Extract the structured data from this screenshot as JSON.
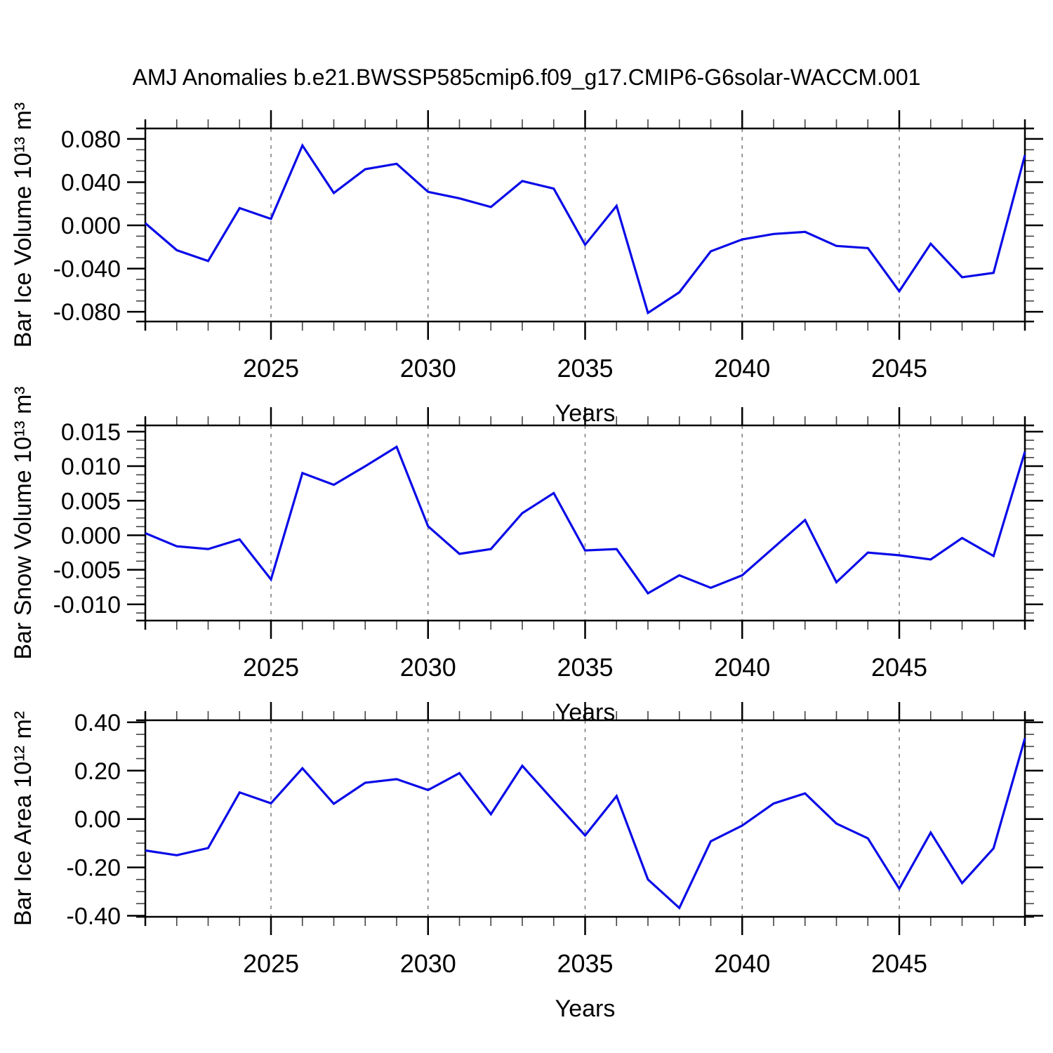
{
  "title": "AMJ Anomalies b.e21.BWSSP585cmip6.f09_g17.CMIP6-G6solar-WACCM.001",
  "style": {
    "line_color": "#0a0ae8",
    "grid_color": "#7a7a7a",
    "axis_color": "#000000",
    "minor_tick_color": "#444444",
    "background": "#ffffff"
  },
  "chart_data": [
    {
      "type": "line",
      "name": "bar-ice-volume",
      "ylabel": "Bar Ice Volume 10¹³ m³",
      "xlabel": "Years",
      "x": [
        2021,
        2022,
        2023,
        2024,
        2025,
        2026,
        2027,
        2028,
        2029,
        2030,
        2031,
        2032,
        2033,
        2034,
        2035,
        2036,
        2037,
        2038,
        2039,
        2040,
        2041,
        2042,
        2043,
        2044,
        2045,
        2046,
        2047,
        2048,
        2049
      ],
      "values": [
        0.002,
        -0.023,
        -0.033,
        0.016,
        0.006,
        0.074,
        0.03,
        0.052,
        0.057,
        0.031,
        0.025,
        0.017,
        0.041,
        0.034,
        -0.018,
        0.018,
        -0.081,
        -0.062,
        -0.024,
        -0.013,
        -0.008,
        -0.006,
        -0.019,
        -0.021,
        -0.061,
        -0.017,
        -0.048,
        -0.044,
        0.065
      ],
      "xlim": [
        2021,
        2049
      ],
      "ylim": [
        -0.089,
        0.0897
      ],
      "xticks_major": [
        2025,
        2030,
        2035,
        2040,
        2045
      ],
      "xtick_minor_step": 1,
      "xtick_labels": [
        "2025",
        "2030",
        "2035",
        "2040",
        "2045"
      ],
      "yticks": [
        -0.08,
        -0.04,
        0.0,
        0.04,
        0.08
      ],
      "ytick_labels": [
        "-0.080",
        "-0.040",
        "0.000",
        "0.040",
        "0.080"
      ],
      "ytick_minor_step": 0.01,
      "grid": "vertical dashed at major x ticks",
      "legend": "none"
    },
    {
      "type": "line",
      "name": "bar-snow-volume",
      "ylabel": "Bar Snow Volume 10¹³ m³",
      "xlabel": "Years",
      "x": [
        2021,
        2022,
        2023,
        2024,
        2025,
        2026,
        2027,
        2028,
        2029,
        2030,
        2031,
        2032,
        2033,
        2034,
        2035,
        2036,
        2037,
        2038,
        2039,
        2040,
        2041,
        2042,
        2043,
        2044,
        2045,
        2046,
        2047,
        2048,
        2049
      ],
      "values": [
        0.0003,
        -0.0016,
        -0.002,
        -0.0006,
        -0.0064,
        0.009,
        0.0073,
        0.01,
        0.0128,
        0.0013,
        -0.0027,
        -0.002,
        0.0032,
        0.0061,
        -0.0022,
        -0.002,
        -0.0084,
        -0.0058,
        -0.0076,
        -0.0058,
        -0.0018,
        0.0022,
        -0.0068,
        -0.0025,
        -0.0029,
        -0.0035,
        -0.0004,
        -0.003,
        0.0121
      ],
      "xlim": [
        2021,
        2049
      ],
      "ylim": [
        -0.01235,
        0.0159
      ],
      "xticks_major": [
        2025,
        2030,
        2035,
        2040,
        2045
      ],
      "xtick_minor_step": 1,
      "xtick_labels": [
        "2025",
        "2030",
        "2035",
        "2040",
        "2045"
      ],
      "yticks": [
        -0.01,
        -0.005,
        0.0,
        0.005,
        0.01,
        0.015
      ],
      "ytick_labels": [
        "-0.010",
        "-0.005",
        "0.000",
        "0.005",
        "0.010",
        "0.015"
      ],
      "ytick_minor_step": 0.00125,
      "grid": "vertical dashed at major x ticks",
      "legend": "none"
    },
    {
      "type": "line",
      "name": "bar-ice-area",
      "ylabel": "Bar Ice Area 10¹² m²",
      "xlabel": "Years",
      "x": [
        2021,
        2022,
        2023,
        2024,
        2025,
        2026,
        2027,
        2028,
        2029,
        2030,
        2031,
        2032,
        2033,
        2034,
        2035,
        2036,
        2037,
        2038,
        2039,
        2040,
        2041,
        2042,
        2043,
        2044,
        2045,
        2046,
        2047,
        2048,
        2049
      ],
      "values": [
        -0.13,
        -0.15,
        -0.12,
        0.11,
        0.065,
        0.21,
        0.063,
        0.15,
        0.165,
        0.12,
        0.19,
        0.02,
        0.22,
        0.075,
        -0.068,
        0.095,
        -0.25,
        -0.368,
        -0.092,
        -0.027,
        0.064,
        0.106,
        -0.019,
        -0.08,
        -0.288,
        -0.056,
        -0.265,
        -0.121,
        0.334
      ],
      "xlim": [
        2021,
        2049
      ],
      "ylim": [
        -0.4045,
        0.4085
      ],
      "xticks_major": [
        2025,
        2030,
        2035,
        2040,
        2045
      ],
      "xtick_minor_step": 1,
      "xtick_labels": [
        "2025",
        "2030",
        "2035",
        "2040",
        "2045"
      ],
      "yticks": [
        -0.4,
        -0.2,
        0.0,
        0.2,
        0.4
      ],
      "ytick_labels": [
        "-0.40",
        "-0.20",
        "0.00",
        "0.20",
        "0.40"
      ],
      "ytick_minor_step": 0.05,
      "grid": "vertical dashed at major x ticks",
      "legend": "none"
    }
  ]
}
